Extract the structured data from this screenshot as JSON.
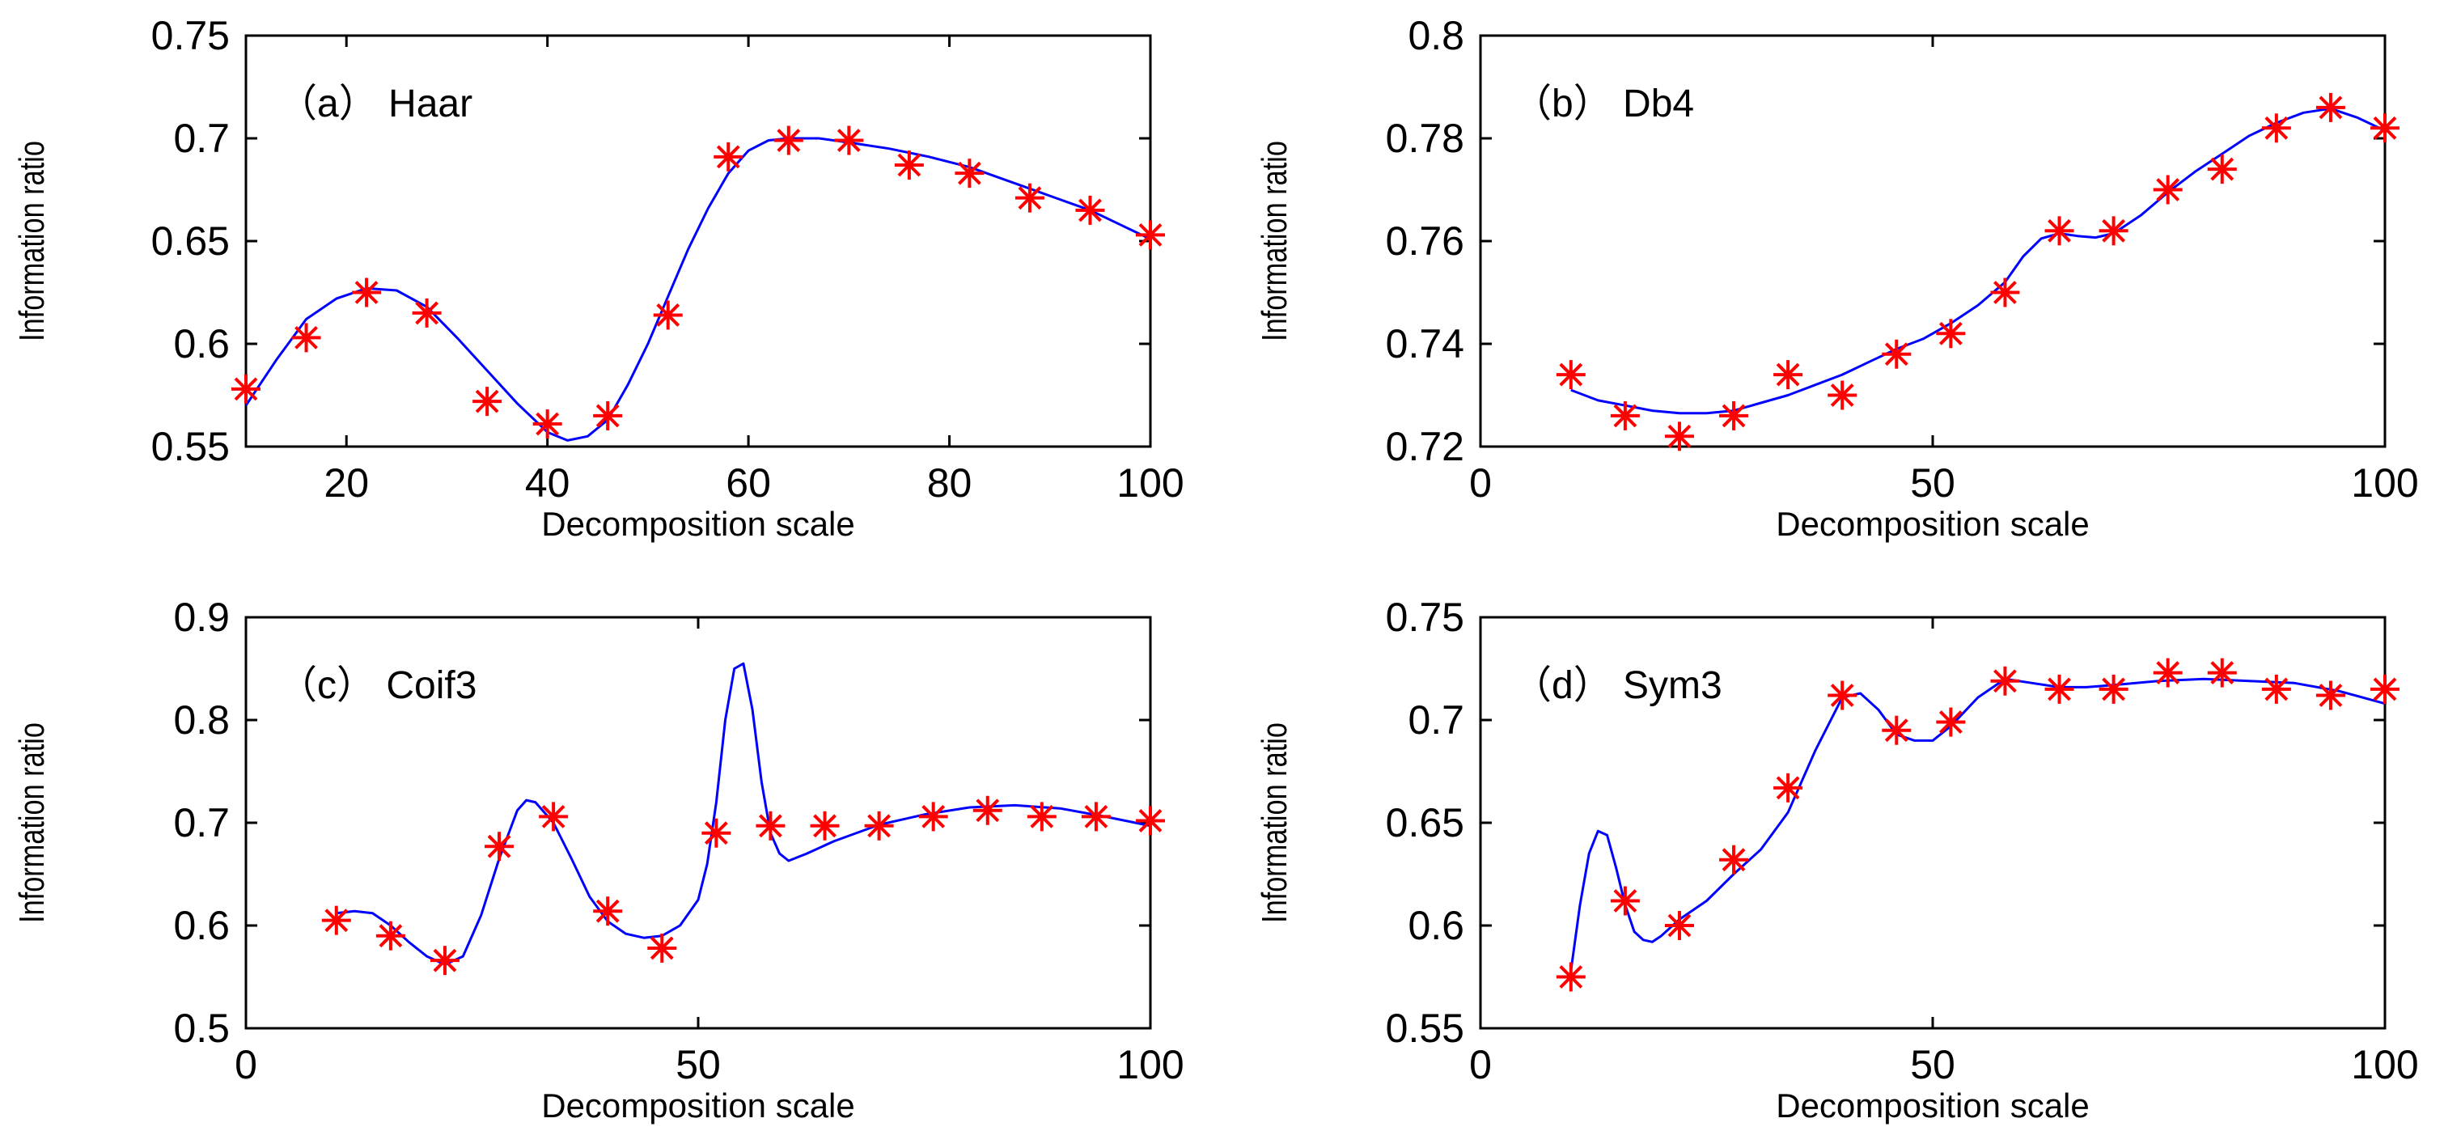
{
  "figure": {
    "background": "#ffffff",
    "line_color": "#0000ff",
    "marker_color": "#ff0000",
    "axis_color": "#000000"
  },
  "chart_data": [
    {
      "type": "line",
      "id": "a",
      "panel_label": "（a） Haar",
      "xlabel": "Decomposition scale",
      "ylabel": "Information ratio",
      "xlim": [
        10,
        100
      ],
      "ylim": [
        0.55,
        0.75
      ],
      "xticks": [
        20,
        40,
        60,
        80,
        100
      ],
      "xtick_labels": [
        "20",
        "40",
        "60",
        "80",
        "100"
      ],
      "yticks": [
        0.55,
        0.6,
        0.65,
        0.7,
        0.75
      ],
      "ytick_labels": [
        "0.55",
        "0.6",
        "0.65",
        "0.7",
        "0.75"
      ],
      "markers": {
        "name": "data points",
        "x": [
          10,
          16,
          22,
          28,
          34,
          40,
          46,
          52,
          58,
          64,
          70,
          76,
          82,
          88,
          94,
          100
        ],
        "y": [
          0.578,
          0.603,
          0.625,
          0.615,
          0.572,
          0.561,
          0.565,
          0.614,
          0.691,
          0.699,
          0.699,
          0.687,
          0.683,
          0.671,
          0.665,
          0.653
        ]
      },
      "curve": {
        "name": "fitted curve",
        "x": [
          10,
          13,
          16,
          19,
          22,
          25,
          28,
          31,
          34,
          37,
          40,
          42,
          44,
          46,
          48,
          50,
          52,
          54,
          56,
          58,
          60,
          62,
          64,
          67,
          70,
          74,
          78,
          82,
          86,
          90,
          94,
          97,
          100
        ],
        "y": [
          0.57,
          0.592,
          0.612,
          0.622,
          0.627,
          0.626,
          0.618,
          0.603,
          0.587,
          0.571,
          0.557,
          0.553,
          0.555,
          0.563,
          0.58,
          0.6,
          0.623,
          0.646,
          0.666,
          0.683,
          0.694,
          0.699,
          0.7,
          0.7,
          0.698,
          0.695,
          0.691,
          0.686,
          0.679,
          0.672,
          0.665,
          0.658,
          0.651
        ]
      }
    },
    {
      "type": "line",
      "id": "b",
      "panel_label": "（b） Db4",
      "xlabel": "Decomposition scale",
      "ylabel": "Information ratio",
      "xlim": [
        0,
        100
      ],
      "ylim": [
        0.72,
        0.8
      ],
      "xticks": [
        0,
        50,
        100
      ],
      "xtick_labels": [
        "0",
        "50",
        "100"
      ],
      "yticks": [
        0.72,
        0.74,
        0.76,
        0.78,
        0.8
      ],
      "ytick_labels": [
        "0.72",
        "0.74",
        "0.76",
        "0.78",
        "0.8"
      ],
      "markers": {
        "name": "data points",
        "x": [
          10,
          16,
          22,
          28,
          34,
          40,
          46,
          52,
          58,
          64,
          70,
          76,
          82,
          88,
          94,
          100
        ],
        "y": [
          0.734,
          0.726,
          0.722,
          0.726,
          0.734,
          0.73,
          0.738,
          0.742,
          0.75,
          0.762,
          0.762,
          0.77,
          0.774,
          0.782,
          0.786,
          0.782
        ]
      },
      "curve": {
        "name": "fitted curve",
        "x": [
          10,
          13,
          16,
          19,
          22,
          25,
          28,
          31,
          34,
          37,
          40,
          43,
          46,
          49,
          52,
          55,
          58,
          60,
          62,
          64,
          66,
          68,
          70,
          73,
          76,
          79,
          82,
          85,
          88,
          91,
          94,
          97,
          100
        ],
        "y": [
          0.731,
          0.729,
          0.728,
          0.727,
          0.7265,
          0.7265,
          0.727,
          0.7285,
          0.73,
          0.732,
          0.734,
          0.7365,
          0.739,
          0.741,
          0.744,
          0.7475,
          0.752,
          0.757,
          0.7605,
          0.7615,
          0.761,
          0.7607,
          0.7615,
          0.765,
          0.7695,
          0.7735,
          0.777,
          0.7805,
          0.783,
          0.785,
          0.7858,
          0.784,
          0.7815
        ]
      }
    },
    {
      "type": "line",
      "id": "c",
      "panel_label": "（c） Coif3",
      "xlabel": "Decomposition scale",
      "ylabel": "Information ratio",
      "xlim": [
        0,
        100
      ],
      "ylim": [
        0.5,
        0.9
      ],
      "xticks": [
        0,
        50,
        100
      ],
      "xtick_labels": [
        "0",
        "50",
        "100"
      ],
      "yticks": [
        0.5,
        0.6,
        0.7,
        0.8,
        0.9
      ],
      "ytick_labels": [
        "0.5",
        "0.6",
        "0.7",
        "0.8",
        "0.9"
      ],
      "markers": {
        "name": "data points",
        "x": [
          10,
          16,
          22,
          28,
          34,
          40,
          46,
          52,
          58,
          64,
          70,
          76,
          82,
          88,
          94,
          100
        ],
        "y": [
          0.605,
          0.59,
          0.566,
          0.677,
          0.706,
          0.614,
          0.578,
          0.69,
          0.697,
          0.697,
          0.697,
          0.706,
          0.712,
          0.706,
          0.706,
          0.702
        ]
      },
      "curve": {
        "name": "fitted curve",
        "x": [
          10,
          12,
          14,
          16,
          18,
          20,
          22,
          24,
          26,
          28,
          30,
          31,
          32,
          34,
          36,
          38,
          40,
          42,
          44,
          46,
          48,
          50,
          51,
          52,
          53,
          54,
          55,
          56,
          57,
          58,
          59,
          60,
          62,
          65,
          70,
          75,
          80,
          85,
          90,
          95,
          100
        ],
        "y": [
          0.612,
          0.614,
          0.612,
          0.6,
          0.584,
          0.57,
          0.562,
          0.57,
          0.61,
          0.665,
          0.712,
          0.722,
          0.72,
          0.7,
          0.665,
          0.628,
          0.604,
          0.592,
          0.588,
          0.59,
          0.6,
          0.625,
          0.66,
          0.72,
          0.8,
          0.85,
          0.855,
          0.81,
          0.74,
          0.69,
          0.67,
          0.663,
          0.67,
          0.682,
          0.698,
          0.708,
          0.715,
          0.717,
          0.714,
          0.706,
          0.697
        ]
      }
    },
    {
      "type": "line",
      "id": "d",
      "panel_label": "（d） Sym3",
      "xlabel": "Decomposition scale",
      "ylabel": "Information ratio",
      "xlim": [
        0,
        100
      ],
      "ylim": [
        0.55,
        0.75
      ],
      "xticks": [
        0,
        50,
        100
      ],
      "xtick_labels": [
        "0",
        "50",
        "100"
      ],
      "yticks": [
        0.55,
        0.6,
        0.65,
        0.7,
        0.75
      ],
      "ytick_labels": [
        "0.55",
        "0.6",
        "0.65",
        "0.7",
        "0.75"
      ],
      "markers": {
        "name": "data points",
        "x": [
          10,
          16,
          22,
          28,
          34,
          40,
          46,
          52,
          58,
          64,
          70,
          76,
          82,
          88,
          94,
          100
        ],
        "y": [
          0.575,
          0.612,
          0.6,
          0.632,
          0.667,
          0.712,
          0.695,
          0.699,
          0.719,
          0.715,
          0.715,
          0.723,
          0.723,
          0.715,
          0.712,
          0.715
        ]
      },
      "curve": {
        "name": "fitted curve",
        "x": [
          10,
          11,
          12,
          13,
          14,
          15,
          16,
          17,
          18,
          19,
          20,
          22,
          25,
          28,
          31,
          34,
          37,
          40,
          42,
          44,
          46,
          48,
          50,
          52,
          55,
          58,
          61,
          64,
          67,
          70,
          75,
          80,
          85,
          90,
          95,
          100
        ],
        "y": [
          0.578,
          0.61,
          0.635,
          0.646,
          0.644,
          0.628,
          0.61,
          0.597,
          0.593,
          0.592,
          0.595,
          0.603,
          0.612,
          0.625,
          0.637,
          0.655,
          0.685,
          0.711,
          0.713,
          0.705,
          0.693,
          0.69,
          0.69,
          0.697,
          0.711,
          0.72,
          0.718,
          0.716,
          0.716,
          0.717,
          0.719,
          0.72,
          0.719,
          0.718,
          0.714,
          0.708
        ]
      }
    }
  ]
}
